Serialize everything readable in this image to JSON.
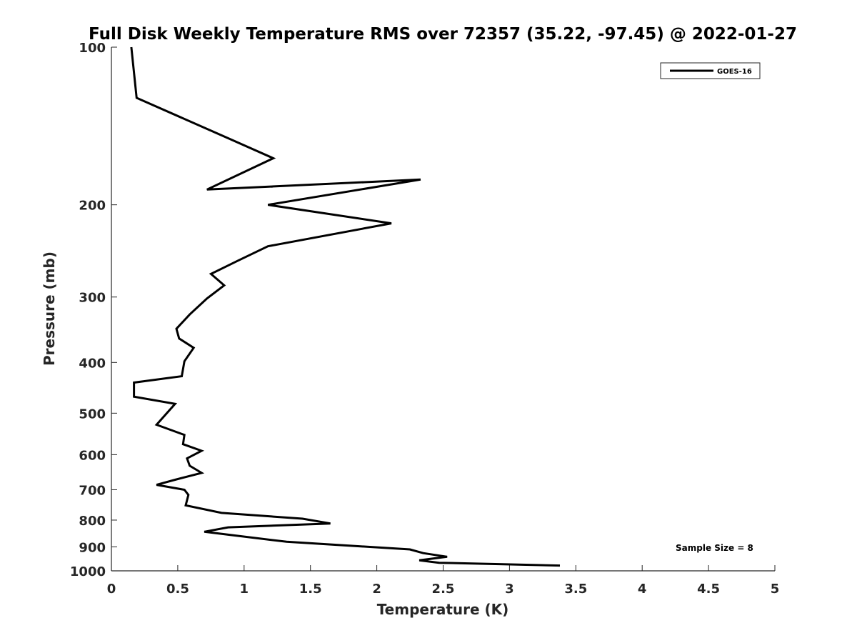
{
  "chart_data": {
    "type": "line",
    "title": "Full Disk Weekly Temperature RMS over 72357 (35.22, -97.45) @ 2022-01-27",
    "xlabel": "Temperature (K)",
    "ylabel": "Pressure (mb)",
    "xlim": [
      0,
      5
    ],
    "ylim": [
      100,
      1000
    ],
    "y_scale": "log",
    "y_reversed": true,
    "x_ticks": [
      "0",
      "0.5",
      "1",
      "1.5",
      "2",
      "2.5",
      "3",
      "3.5",
      "4",
      "4.5",
      "5"
    ],
    "y_ticks": [
      "100",
      "200",
      "300",
      "400",
      "500",
      "600",
      "700",
      "800",
      "900",
      "1000"
    ],
    "grid": false,
    "legend_position": "top-right",
    "annotation": "Sample Size = 8",
    "series": [
      {
        "name": "GOES-16",
        "color": "#000000",
        "points": [
          [
            0.15,
            100
          ],
          [
            0.19,
            125
          ],
          [
            0.9,
            150
          ],
          [
            1.22,
            163
          ],
          [
            0.72,
            187
          ],
          [
            2.33,
            179
          ],
          [
            1.18,
            200
          ],
          [
            2.11,
            217
          ],
          [
            1.18,
            240
          ],
          [
            0.95,
            256
          ],
          [
            0.75,
            271
          ],
          [
            0.85,
            285
          ],
          [
            0.72,
            302
          ],
          [
            0.59,
            324
          ],
          [
            0.49,
            345
          ],
          [
            0.51,
            360
          ],
          [
            0.62,
            375
          ],
          [
            0.55,
            398
          ],
          [
            0.53,
            425
          ],
          [
            0.17,
            437
          ],
          [
            0.17,
            465
          ],
          [
            0.48,
            480
          ],
          [
            0.34,
            526
          ],
          [
            0.55,
            550
          ],
          [
            0.54,
            573
          ],
          [
            0.68,
            590
          ],
          [
            0.57,
            610
          ],
          [
            0.59,
            630
          ],
          [
            0.68,
            650
          ],
          [
            0.48,
            670
          ],
          [
            0.34,
            685
          ],
          [
            0.55,
            700
          ],
          [
            0.58,
            716
          ],
          [
            0.56,
            750
          ],
          [
            0.83,
            775
          ],
          [
            1.44,
            795
          ],
          [
            1.65,
            812
          ],
          [
            0.88,
            826
          ],
          [
            0.7,
            842
          ],
          [
            0.93,
            856
          ],
          [
            1.32,
            880
          ],
          [
            2.25,
            910
          ],
          [
            2.35,
            925
          ],
          [
            2.53,
            940
          ],
          [
            2.32,
            955
          ],
          [
            2.47,
            965
          ],
          [
            3.38,
            977
          ]
        ]
      }
    ]
  }
}
